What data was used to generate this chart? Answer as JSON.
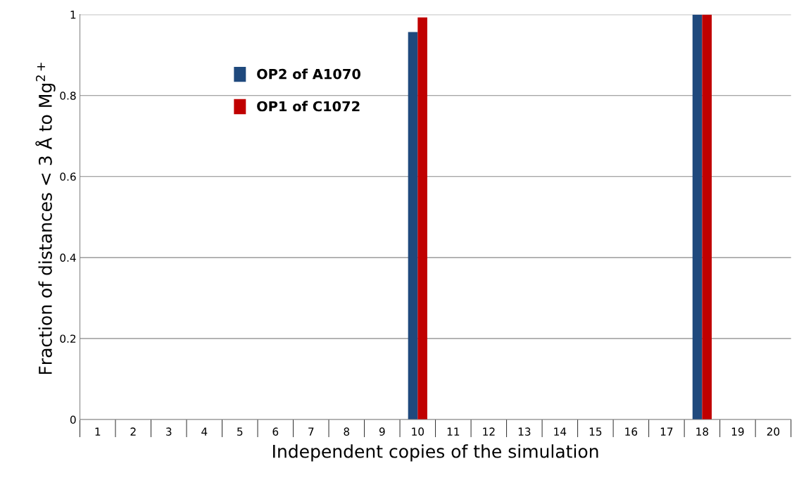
{
  "chart_data": {
    "type": "bar",
    "xlabel": "Independent copies of the simulation",
    "ylabel": "Fraction of distances < 3 Å to Mg$^{2+}$",
    "categories": [
      "1",
      "2",
      "3",
      "4",
      "5",
      "6",
      "7",
      "8",
      "9",
      "10",
      "11",
      "12",
      "13",
      "14",
      "15",
      "16",
      "17",
      "18",
      "19",
      "20"
    ],
    "series": [
      {
        "name": "OP2 of A1070",
        "color": "#1f497d",
        "values": [
          0,
          0,
          0,
          0,
          0,
          0,
          0,
          0,
          0,
          0.957,
          0,
          0,
          0,
          0,
          0,
          0,
          0,
          1,
          0,
          0
        ]
      },
      {
        "name": "OP1 of C1072",
        "color": "#c00000",
        "values": [
          0,
          0,
          0,
          0,
          0,
          0,
          0,
          0,
          0,
          0.993,
          0,
          0,
          0,
          0,
          0,
          0,
          0,
          1,
          0,
          0
        ]
      }
    ],
    "ylim": [
      0,
      1
    ],
    "yticks": [
      0,
      0.2,
      0.4,
      0.6,
      0.8,
      1
    ],
    "grid": "y",
    "legend": "top left"
  }
}
